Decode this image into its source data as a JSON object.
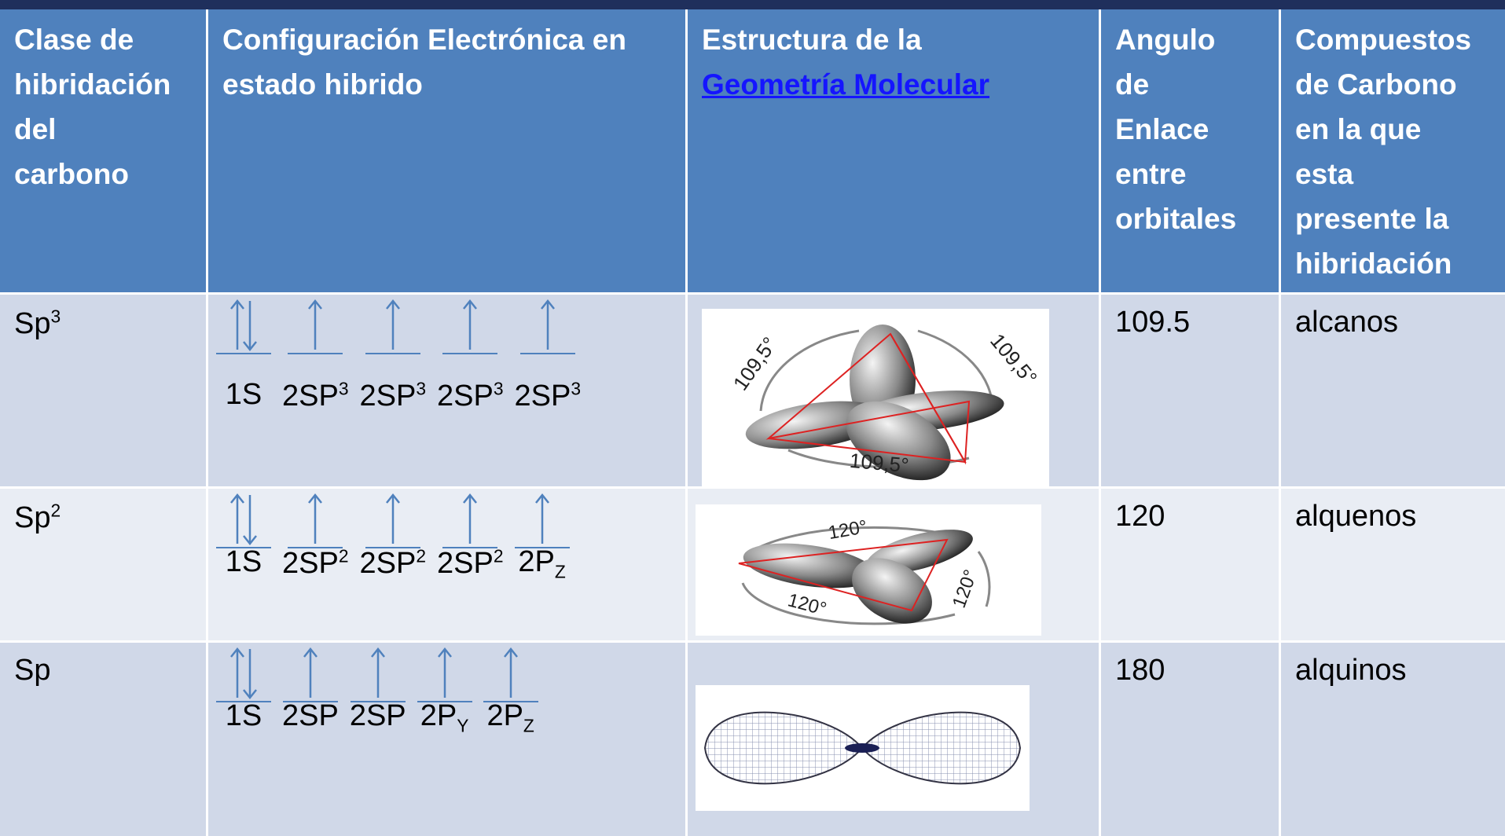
{
  "table": {
    "header": [
      {
        "lines": [
          "Clase de",
          "hibridación",
          "del",
          "carbono"
        ]
      },
      {
        "lines": [
          "Configuración Electrónica en",
          "estado hibrido"
        ]
      },
      {
        "lines": [
          "Estructura de la"
        ],
        "link": "Geometría Molecular"
      },
      {
        "lines": [
          "Angulo",
          "de",
          "Enlace",
          "entre",
          "orbitales"
        ]
      },
      {
        "lines": [
          "Compuestos",
          "de Carbono",
          "en la que",
          "esta",
          "presente la",
          "hibridación"
        ]
      }
    ],
    "rows": [
      {
        "type": {
          "base": "Sp",
          "sup": "3"
        },
        "orbitals": [
          {
            "base": "1S"
          },
          {
            "base": "2SP",
            "sup": "3"
          },
          {
            "base": "2SP",
            "sup": "3"
          },
          {
            "base": "2SP",
            "sup": "3"
          },
          {
            "base": "2SP",
            "sup": "3"
          }
        ],
        "angle_labels": [
          "109,5°",
          "109,5°",
          "109,5°"
        ],
        "angle": 109.5,
        "compounds": "alcanos"
      },
      {
        "type": {
          "base": "Sp",
          "sup": "2"
        },
        "orbitals": [
          {
            "base": "1S"
          },
          {
            "base": "2SP",
            "sup": "2"
          },
          {
            "base": "2SP",
            "sup": "2"
          },
          {
            "base": "2SP",
            "sup": "2"
          },
          {
            "base": "2P",
            "sub": "Z"
          }
        ],
        "angle_labels": [
          "120°",
          "120°",
          "120°"
        ],
        "angle": 120,
        "compounds": "alquenos"
      },
      {
        "type": {
          "base": "Sp"
        },
        "orbitals": [
          {
            "base": "1S"
          },
          {
            "base": "2SP"
          },
          {
            "base": "2SP"
          },
          {
            "base": "2P",
            "sub": "Y"
          },
          {
            "base": "2P",
            "sub": "Z"
          }
        ],
        "angle": 180,
        "compounds": "alquinos"
      }
    ]
  }
}
